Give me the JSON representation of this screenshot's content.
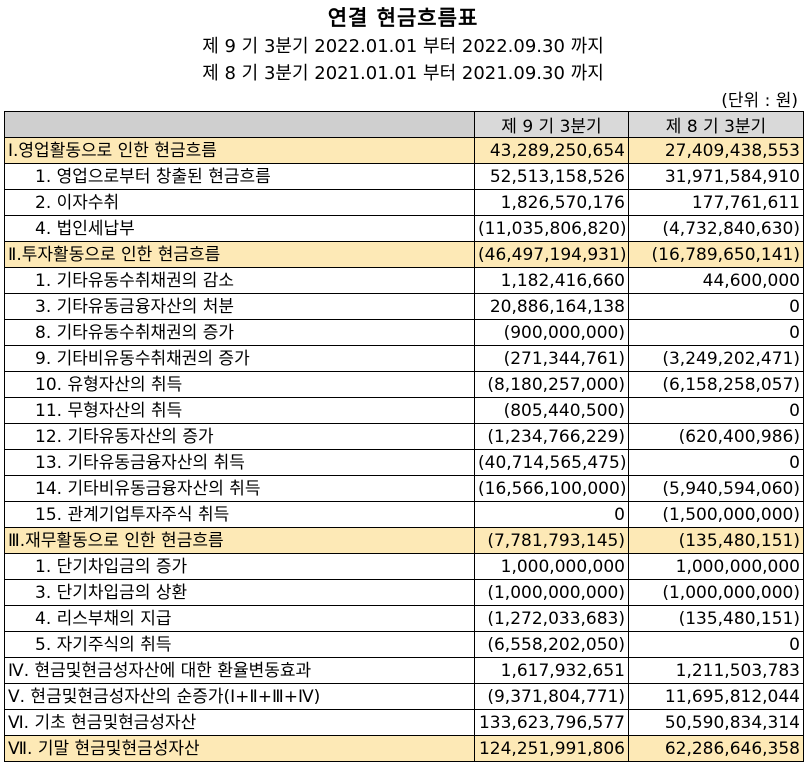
{
  "header": {
    "title": "연결 현금흐름표",
    "period_current": "제 9 기 3분기 2022.01.01 부터 2022.09.30 까지",
    "period_prior": "제 8 기 3분기 2021.01.01 부터 2021.09.30 까지",
    "unit": "(단위 : 원)"
  },
  "table": {
    "columns": [
      "",
      "제 9 기 3분기",
      "제 8 기 3분기"
    ],
    "rows": [
      {
        "label": "Ⅰ.영업활동으로 인한 현금흐름",
        "cur": "43,289,250,654",
        "prev": "27,409,438,553",
        "section": true
      },
      {
        "label": "1. 영업으로부터 창출된 현금흐름",
        "cur": "52,513,158,526",
        "prev": "31,971,584,910",
        "section": false
      },
      {
        "label": "2. 이자수취",
        "cur": "1,826,570,176",
        "prev": "177,761,611",
        "section": false
      },
      {
        "label": "4. 법인세납부",
        "cur": "(11,035,806,820)",
        "prev": "(4,732,840,630)",
        "section": false
      },
      {
        "label": "Ⅱ.투자활동으로 인한 현금흐름",
        "cur": "(46,497,194,931)",
        "prev": "(16,789,650,141)",
        "section": true
      },
      {
        "label": "1. 기타유동수취채권의 감소",
        "cur": "1,182,416,660",
        "prev": "44,600,000",
        "section": false
      },
      {
        "label": "3. 기타유동금융자산의 처분",
        "cur": "20,886,164,138",
        "prev": "0",
        "section": false
      },
      {
        "label": "8. 기타유동수취채권의 증가",
        "cur": "(900,000,000)",
        "prev": "0",
        "section": false
      },
      {
        "label": "9. 기타비유동수취채권의 증가",
        "cur": "(271,344,761)",
        "prev": "(3,249,202,471)",
        "section": false
      },
      {
        "label": "10. 유형자산의 취득",
        "cur": "(8,180,257,000)",
        "prev": "(6,158,258,057)",
        "section": false
      },
      {
        "label": "11. 무형자산의 취득",
        "cur": "(805,440,500)",
        "prev": "0",
        "section": false
      },
      {
        "label": "12. 기타유동자산의 증가",
        "cur": "(1,234,766,229)",
        "prev": "(620,400,986)",
        "section": false
      },
      {
        "label": "13. 기타유동금융자산의 취득",
        "cur": "(40,714,565,475)",
        "prev": "0",
        "section": false
      },
      {
        "label": "14. 기타비유동금융자산의 취득",
        "cur": "(16,566,100,000)",
        "prev": "(5,940,594,060)",
        "section": false
      },
      {
        "label": "15. 관계기업투자주식 취득",
        "cur": "0",
        "prev": "(1,500,000,000)",
        "section": false
      },
      {
        "label": "Ⅲ.재무활동으로 인한 현금흐름",
        "cur": "(7,781,793,145)",
        "prev": "(135,480,151)",
        "section": true
      },
      {
        "label": "1. 단기차입금의 증가",
        "cur": "1,000,000,000",
        "prev": "1,000,000,000",
        "section": false
      },
      {
        "label": "3. 단기차입금의 상환",
        "cur": "(1,000,000,000)",
        "prev": "(1,000,000,000)",
        "section": false
      },
      {
        "label": "4. 리스부채의 지급",
        "cur": "(1,272,033,683)",
        "prev": "(135,480,151)",
        "section": false
      },
      {
        "label": "5. 자기주식의 취득",
        "cur": "(6,558,202,050)",
        "prev": "0",
        "section": false
      },
      {
        "label": "Ⅳ. 현금및현금성자산에 대한 환율변동효과",
        "cur": "1,617,932,651",
        "prev": "1,211,503,783",
        "section": false
      },
      {
        "label": "Ⅴ. 현금및현금성자산의 순증가(Ⅰ+Ⅱ+Ⅲ+Ⅳ)",
        "cur": "(9,371,804,771)",
        "prev": "11,695,812,044",
        "section": false
      },
      {
        "label": "Ⅵ. 기초 현금및현금성자산",
        "cur": "133,623,796,577",
        "prev": "50,590,834,314",
        "section": false
      },
      {
        "label": "Ⅶ. 기말 현금및현금성자산",
        "cur": "124,251,991,806",
        "prev": "62,286,646,358",
        "section": true
      }
    ]
  }
}
